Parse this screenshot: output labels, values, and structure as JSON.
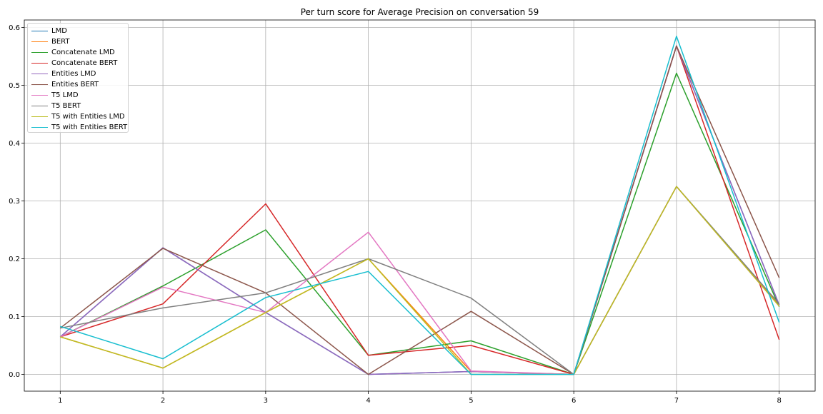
{
  "chart_data": {
    "type": "line",
    "title": "Per turn score for Average Precision on conversation 59",
    "xlabel": "",
    "ylabel": "",
    "x": [
      1,
      2,
      3,
      4,
      5,
      6,
      7,
      8
    ],
    "x_tick_labels": [
      "1",
      "2",
      "3",
      "4",
      "5",
      "6",
      "7",
      "8"
    ],
    "y_ticks": [
      0.0,
      0.1,
      0.2,
      0.3,
      0.4,
      0.5,
      0.6
    ],
    "y_tick_labels": [
      "0.0",
      "0.1",
      "0.2",
      "0.3",
      "0.4",
      "0.5",
      "0.6"
    ],
    "xlim": [
      0.65,
      8.35
    ],
    "ylim": [
      -0.029,
      0.613
    ],
    "grid": true,
    "legend_position": "top-left",
    "series": [
      {
        "name": "LMD",
        "color": "#1f77b4",
        "values": [
          0.065,
          0.219,
          0.107,
          0.0,
          0.005,
          0.0,
          0.568,
          0.12
        ]
      },
      {
        "name": "BERT",
        "color": "#ff7f0e",
        "values": [
          0.065,
          0.011,
          0.107,
          0.2,
          0.005,
          0.0,
          0.325,
          0.12
        ]
      },
      {
        "name": "Concatenate LMD",
        "color": "#2ca02c",
        "values": [
          0.065,
          0.153,
          0.25,
          0.033,
          0.058,
          0.0,
          0.521,
          0.117
        ]
      },
      {
        "name": "Concatenate BERT",
        "color": "#d62728",
        "values": [
          0.065,
          0.122,
          0.295,
          0.033,
          0.05,
          0.0,
          0.568,
          0.06
        ]
      },
      {
        "name": "Entities LMD",
        "color": "#9467bd",
        "values": [
          0.065,
          0.219,
          0.107,
          0.0,
          0.005,
          0.0,
          0.568,
          0.12
        ]
      },
      {
        "name": "Entities BERT",
        "color": "#8c564b",
        "values": [
          0.08,
          0.218,
          0.141,
          0.0,
          0.109,
          0.0,
          0.568,
          0.167
        ]
      },
      {
        "name": "T5 LMD",
        "color": "#e377c2",
        "values": [
          0.065,
          0.151,
          0.107,
          0.246,
          0.006,
          0.0,
          0.325,
          0.118
        ]
      },
      {
        "name": "T5 BERT",
        "color": "#7f7f7f",
        "values": [
          0.08,
          0.115,
          0.141,
          0.2,
          0.132,
          0.0,
          0.325,
          0.122
        ]
      },
      {
        "name": "T5 with Entities LMD",
        "color": "#bcbd22",
        "values": [
          0.065,
          0.011,
          0.107,
          0.2,
          0.0,
          0.0,
          0.325,
          0.118
        ]
      },
      {
        "name": "T5 with Entities BERT",
        "color": "#17becf",
        "values": [
          0.083,
          0.027,
          0.133,
          0.178,
          0.0,
          0.0,
          0.585,
          0.09
        ]
      }
    ]
  }
}
